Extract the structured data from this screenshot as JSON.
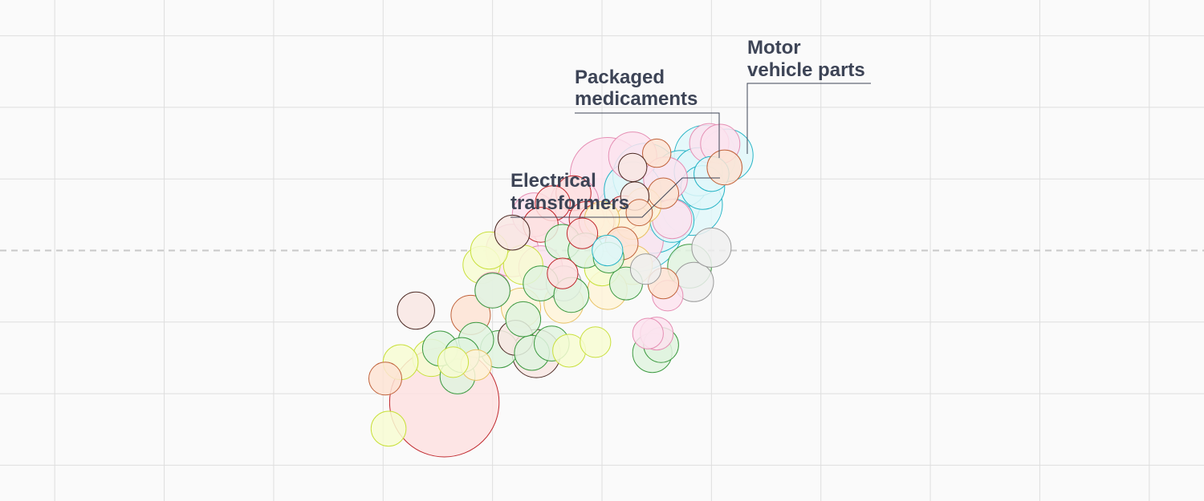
{
  "chart_data": {
    "type": "scatter",
    "title": "",
    "xlabel": "",
    "ylabel": "",
    "xlim": [
      -5.5,
      5.5
    ],
    "ylim": [
      -3.5,
      3.5
    ],
    "grid": true,
    "reference_line": {
      "axis": "y",
      "value": 0,
      "style": "dashed"
    },
    "palette": {
      "red": {
        "fill": "#fde0e0",
        "stroke": "#c0282d"
      },
      "pink": {
        "fill": "#fbe3ef",
        "stroke": "#e58fb4"
      },
      "cyan": {
        "fill": "#e1f7f9",
        "stroke": "#27b4c6"
      },
      "orange": {
        "fill": "#fde3d3",
        "stroke": "#c0623a"
      },
      "yellow": {
        "fill": "#f7fbd2",
        "stroke": "#c9e03c"
      },
      "lightyellow": {
        "fill": "#fef3d8",
        "stroke": "#e8c264"
      },
      "green": {
        "fill": "#e0f3df",
        "stroke": "#3f9b43"
      },
      "gray": {
        "fill": "#eeeeee",
        "stroke": "#9a9a9a"
      },
      "brown": {
        "fill": "#f8e6e3",
        "stroke": "#4c2a24"
      }
    },
    "points": [
      {
        "x": 0.32,
        "y": 0.35,
        "r": 0.42,
        "c": "cyan"
      },
      {
        "x": 0.46,
        "y": 0.48,
        "r": 0.34,
        "c": "cyan"
      },
      {
        "x": 0.6,
        "y": 0.68,
        "r": 0.3,
        "c": "cyan"
      },
      {
        "x": 0.82,
        "y": 0.64,
        "r": 0.28,
        "c": "cyan"
      },
      {
        "x": 0.72,
        "y": 1.0,
        "r": 0.26,
        "c": "cyan"
      },
      {
        "x": 0.94,
        "y": 1.32,
        "r": 0.28,
        "c": "cyan"
      },
      {
        "x": 1.14,
        "y": 1.33,
        "r": 0.24,
        "c": "cyan"
      },
      {
        "x": 0.88,
        "y": 1.1,
        "r": 0.22,
        "c": "cyan"
      },
      {
        "x": 0.4,
        "y": 1.04,
        "r": 0.3,
        "c": "cyan"
      },
      {
        "x": 0.28,
        "y": 0.84,
        "r": 0.26,
        "c": "cyan"
      },
      {
        "x": 0.92,
        "y": 0.88,
        "r": 0.2,
        "c": "cyan"
      },
      {
        "x": 0.64,
        "y": 0.42,
        "r": 0.2,
        "c": "cyan"
      },
      {
        "x": 0.28,
        "y": 1.32,
        "r": 0.22,
        "c": "pink"
      },
      {
        "x": 0.98,
        "y": 1.5,
        "r": 0.18,
        "c": "pink"
      },
      {
        "x": 1.08,
        "y": 1.49,
        "r": 0.18,
        "c": "pink"
      },
      {
        "x": 0.05,
        "y": 1.06,
        "r": 0.34,
        "c": "pink"
      },
      {
        "x": 0.58,
        "y": 1.0,
        "r": 0.2,
        "c": "pink"
      },
      {
        "x": 0.64,
        "y": 0.44,
        "r": 0.18,
        "c": "pink"
      },
      {
        "x": -0.25,
        "y": 0.68,
        "r": 0.22,
        "c": "pink"
      },
      {
        "x": 0.3,
        "y": 0.15,
        "r": 0.26,
        "c": "pink"
      },
      {
        "x": -0.62,
        "y": 0.5,
        "r": 0.2,
        "c": "pink"
      },
      {
        "x": -0.56,
        "y": -0.24,
        "r": 0.2,
        "c": "pink"
      },
      {
        "x": 0.6,
        "y": -0.63,
        "r": 0.14,
        "c": "pink"
      },
      {
        "x": 0.42,
        "y": -1.16,
        "r": 0.14,
        "c": "pink"
      },
      {
        "x": -0.82,
        "y": 0.0,
        "r": 0.24,
        "c": "pink"
      },
      {
        "x": -1.0,
        "y": -0.55,
        "r": 0.16,
        "c": "pink"
      },
      {
        "x": 1.0,
        "y": 1.07,
        "r": 0.16,
        "c": "cyan"
      },
      {
        "x": 0.5,
        "y": 1.36,
        "r": 0.13,
        "c": "orange"
      },
      {
        "x": 0.28,
        "y": 1.16,
        "r": 0.13,
        "c": "brown"
      },
      {
        "x": 1.12,
        "y": 1.16,
        "r": 0.16,
        "c": "orange"
      },
      {
        "x": 0.56,
        "y": 0.8,
        "r": 0.14,
        "c": "orange"
      },
      {
        "x": 0.3,
        "y": 0.76,
        "r": 0.13,
        "c": "brown"
      },
      {
        "x": 0.34,
        "y": 0.53,
        "r": 0.12,
        "c": "orange"
      },
      {
        "x": 0.18,
        "y": 0.1,
        "r": 0.15,
        "c": "orange"
      },
      {
        "x": 0.56,
        "y": -0.46,
        "r": 0.14,
        "c": "orange"
      },
      {
        "x": 0.2,
        "y": 0.52,
        "r": 0.16,
        "c": "red"
      },
      {
        "x": -0.26,
        "y": 0.8,
        "r": 0.16,
        "c": "red"
      },
      {
        "x": -0.45,
        "y": 0.66,
        "r": 0.16,
        "c": "red"
      },
      {
        "x": -0.14,
        "y": 0.44,
        "r": 0.16,
        "c": "red"
      },
      {
        "x": -0.05,
        "y": 0.4,
        "r": 0.16,
        "c": "red"
      },
      {
        "x": -0.18,
        "y": 0.24,
        "r": 0.14,
        "c": "red"
      },
      {
        "x": -0.56,
        "y": 0.36,
        "r": 0.16,
        "c": "red"
      },
      {
        "x": -0.36,
        "y": -0.32,
        "r": 0.14,
        "c": "red"
      },
      {
        "x": -1.44,
        "y": -2.12,
        "r": 0.5,
        "c": "red"
      },
      {
        "x": -0.6,
        "y": -1.44,
        "r": 0.22,
        "c": "brown"
      },
      {
        "x": -0.82,
        "y": 0.25,
        "r": 0.16,
        "c": "brown"
      },
      {
        "x": -1.7,
        "y": -0.84,
        "r": 0.17,
        "c": "brown"
      },
      {
        "x": -0.79,
        "y": -1.22,
        "r": 0.16,
        "c": "brown"
      },
      {
        "x": -1.2,
        "y": -0.9,
        "r": 0.18,
        "c": "orange"
      },
      {
        "x": 0.84,
        "y": -0.44,
        "r": 0.18,
        "c": "gray"
      },
      {
        "x": 1.0,
        "y": 0.04,
        "r": 0.18,
        "c": "gray"
      },
      {
        "x": -0.35,
        "y": -0.46,
        "r": 0.16,
        "c": "gray"
      },
      {
        "x": 0.4,
        "y": -0.26,
        "r": 0.14,
        "c": "gray"
      },
      {
        "x": 0.38,
        "y": 0.63,
        "r": 0.16,
        "c": "lightyellow"
      },
      {
        "x": 0.28,
        "y": 0.4,
        "r": 0.16,
        "c": "lightyellow"
      },
      {
        "x": 0.28,
        "y": -0.2,
        "r": 0.18,
        "c": "lightyellow"
      },
      {
        "x": 0.05,
        "y": -0.55,
        "r": 0.18,
        "c": "lightyellow"
      },
      {
        "x": -0.35,
        "y": -0.74,
        "r": 0.18,
        "c": "lightyellow"
      },
      {
        "x": -0.74,
        "y": -0.8,
        "r": 0.18,
        "c": "lightyellow"
      },
      {
        "x": -1.15,
        "y": -1.6,
        "r": 0.14,
        "c": "lightyellow"
      },
      {
        "x": -1.98,
        "y": -1.79,
        "r": 0.15,
        "c": "orange"
      },
      {
        "x": -1.56,
        "y": -1.5,
        "r": 0.17,
        "c": "yellow"
      },
      {
        "x": -1.36,
        "y": -1.56,
        "r": 0.14,
        "c": "yellow"
      },
      {
        "x": -1.95,
        "y": -2.49,
        "r": 0.16,
        "c": "yellow"
      },
      {
        "x": -1.84,
        "y": -1.56,
        "r": 0.16,
        "c": "yellow"
      },
      {
        "x": -0.3,
        "y": -1.4,
        "r": 0.15,
        "c": "yellow"
      },
      {
        "x": -0.06,
        "y": -1.28,
        "r": 0.14,
        "c": "yellow"
      },
      {
        "x": -1.1,
        "y": -0.2,
        "r": 0.17,
        "c": "yellow"
      },
      {
        "x": -0.72,
        "y": -0.2,
        "r": 0.18,
        "c": "yellow"
      },
      {
        "x": -1.03,
        "y": 0.0,
        "r": 0.17,
        "c": "yellow"
      },
      {
        "x": 0.0,
        "y": -0.25,
        "r": 0.16,
        "c": "yellow"
      },
      {
        "x": 0.0,
        "y": 0.44,
        "r": 0.16,
        "c": "lightyellow"
      },
      {
        "x": -0.36,
        "y": 0.12,
        "r": 0.16,
        "c": "green"
      },
      {
        "x": -0.56,
        "y": -0.46,
        "r": 0.16,
        "c": "green"
      },
      {
        "x": -1.0,
        "y": -0.56,
        "r": 0.16,
        "c": "green"
      },
      {
        "x": -1.15,
        "y": -1.25,
        "r": 0.16,
        "c": "green"
      },
      {
        "x": -1.32,
        "y": -1.76,
        "r": 0.16,
        "c": "green"
      },
      {
        "x": -1.48,
        "y": -1.37,
        "r": 0.16,
        "c": "green"
      },
      {
        "x": -1.28,
        "y": -1.46,
        "r": 0.16,
        "c": "green"
      },
      {
        "x": -0.64,
        "y": -1.43,
        "r": 0.16,
        "c": "green"
      },
      {
        "x": -0.94,
        "y": -1.38,
        "r": 0.17,
        "c": "green"
      },
      {
        "x": -0.28,
        "y": -0.62,
        "r": 0.16,
        "c": "green"
      },
      {
        "x": 0.46,
        "y": -1.43,
        "r": 0.18,
        "c": "green"
      },
      {
        "x": 0.54,
        "y": -1.32,
        "r": 0.16,
        "c": "green"
      },
      {
        "x": 0.8,
        "y": -0.22,
        "r": 0.2,
        "c": "green"
      },
      {
        "x": 0.22,
        "y": -0.46,
        "r": 0.15,
        "c": "green"
      },
      {
        "x": -0.15,
        "y": 0.0,
        "r": 0.16,
        "c": "green"
      },
      {
        "x": -0.46,
        "y": -1.3,
        "r": 0.16,
        "c": "green"
      },
      {
        "x": -0.72,
        "y": -0.96,
        "r": 0.16,
        "c": "green"
      },
      {
        "x": 0.06,
        "y": -0.1,
        "r": 0.14,
        "c": "green"
      },
      {
        "x": 0.5,
        "y": -1.16,
        "r": 0.15,
        "c": "pink"
      },
      {
        "x": 0.05,
        "y": 0.0,
        "r": 0.14,
        "c": "cyan"
      }
    ],
    "annotations": [
      {
        "lines": [
          "Motor",
          "vehicle parts"
        ]
      },
      {
        "lines": [
          "Packaged",
          "medicaments"
        ]
      },
      {
        "lines": [
          "Electrical",
          "transformers"
        ]
      }
    ]
  }
}
